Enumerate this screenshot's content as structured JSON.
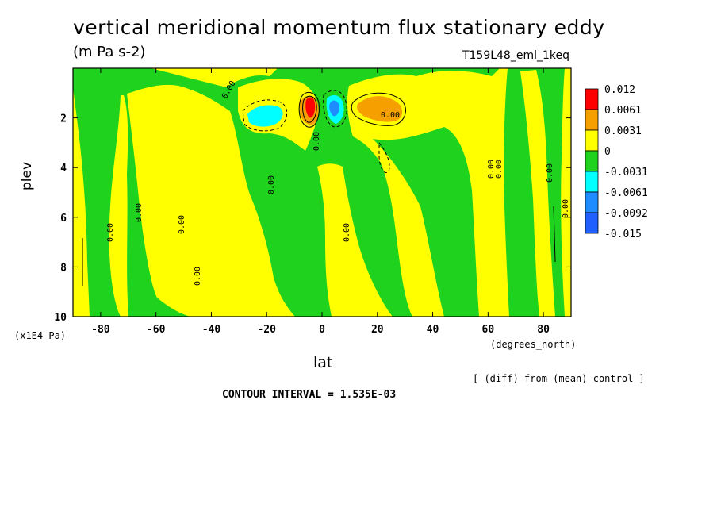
{
  "header": {
    "title": "vertical meridional momentum flux stationary eddy",
    "units": "(m Pa s-2)",
    "run_id": "T159L48_eml_1keq"
  },
  "footer": {
    "diff_note": "[ (diff) from (mean) control ]",
    "contour_interval": "CONTOUR INTERVAL = 1.535E-03"
  },
  "colors": {
    "red": "#ff0000",
    "orange": "#f5a000",
    "yellow": "#ffff00",
    "green": "#1ed21e",
    "cyan": "#00ffff",
    "blue_mid": "#1e8cff",
    "blue_dark": "#2060ff"
  },
  "chart_data": {
    "type": "contour",
    "title": "vertical meridional momentum flux stationary eddy",
    "subtitle": "(m Pa s-2)",
    "xlabel": "lat",
    "x_unit": "(degrees_north)",
    "ylabel": "plev",
    "y_unit": "(x1E4 Pa)",
    "xlim": [
      -90,
      90
    ],
    "ylim": [
      10,
      0
    ],
    "x_ticks": [
      -80,
      -60,
      -40,
      -20,
      0,
      20,
      40,
      60,
      80
    ],
    "x_tick_labels": [
      "-80",
      "-60",
      "-40",
      "-20",
      "0",
      "20",
      "40",
      "60",
      "80"
    ],
    "y_ticks": [
      2,
      4,
      6,
      8,
      10
    ],
    "y_tick_labels": [
      "2",
      "4",
      "6",
      "8",
      "10"
    ],
    "contour_interval": 0.001535,
    "levels": [
      {
        "label": "0.012",
        "color": "#ff0000"
      },
      {
        "label": "0.0061",
        "color": "#f5a000"
      },
      {
        "label": "0.0031",
        "color": "#ffff00"
      },
      {
        "label": "0",
        "color": "#1ed21e"
      },
      {
        "label": "-0.0031",
        "color": "#00ffff"
      },
      {
        "label": "-0.0061",
        "color": "#1e8cff"
      },
      {
        "label": "-0.0092",
        "color": "#2060ff"
      },
      {
        "label": "-0.015",
        "color": ""
      }
    ],
    "contour_labels": [
      "0.00",
      "0.00",
      "0.00",
      "0.00",
      "0.00",
      "0.00",
      "0.00",
      "0.00",
      "0.00",
      "0.00",
      "0.00",
      "0.00",
      "0.00"
    ],
    "features": [
      {
        "lat": -5,
        "plev": 1.7,
        "sign": "positive",
        "peak_class": "0.012"
      },
      {
        "lat": 5,
        "plev": 1.8,
        "sign": "negative",
        "peak_class": "-0.0092"
      },
      {
        "lat": 22,
        "plev": 1.8,
        "sign": "positive",
        "peak_class": "0.0061"
      },
      {
        "lat": -22,
        "plev": 1.9,
        "sign": "negative",
        "peak_class": "-0.0061"
      }
    ]
  }
}
